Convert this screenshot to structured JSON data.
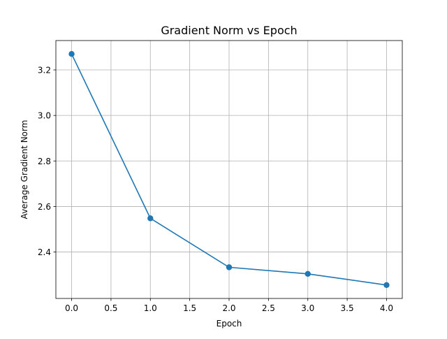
{
  "chart_data": {
    "type": "line",
    "title": "Gradient Norm vs Epoch",
    "xlabel": "Epoch",
    "ylabel": "Average Gradient Norm",
    "x": [
      0,
      1,
      2,
      3,
      4
    ],
    "series": [
      {
        "values": [
          3.27,
          2.548,
          2.333,
          2.304,
          2.255
        ],
        "color": "#1f77b4",
        "marker": "circle"
      }
    ],
    "xlim": [
      -0.2,
      4.2
    ],
    "ylim": [
      2.196,
      3.329
    ],
    "xticks": [
      0.0,
      0.5,
      1.0,
      1.5,
      2.0,
      2.5,
      3.0,
      3.5,
      4.0
    ],
    "xtick_labels": [
      "0.0",
      "0.5",
      "1.0",
      "1.5",
      "2.0",
      "2.5",
      "3.0",
      "3.5",
      "4.0"
    ],
    "yticks": [
      2.4,
      2.6,
      2.8,
      3.0,
      3.2
    ],
    "ytick_labels": [
      "2.4",
      "2.6",
      "2.8",
      "3.0",
      "3.2"
    ],
    "grid": true,
    "legend": false
  }
}
